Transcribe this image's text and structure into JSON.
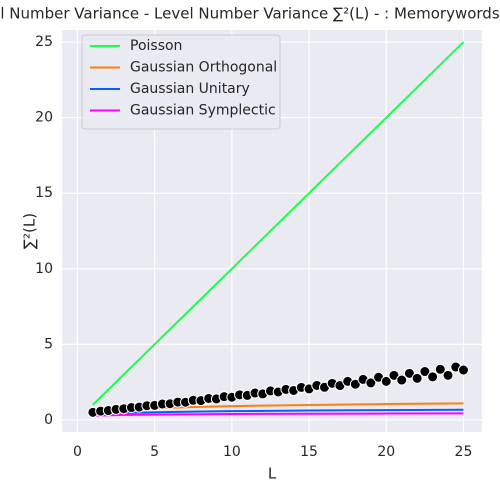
{
  "chart_data": {
    "type": "line",
    "title": "l Number Variance - Level Number Variance ∑²(L) - : Memorywords",
    "xlabel": "L",
    "ylabel": "∑²(L)",
    "xlim": [
      -1,
      26.2
    ],
    "ylim": [
      -0.8,
      25.8
    ],
    "xticks": [
      0,
      5,
      10,
      15,
      20,
      25
    ],
    "yticks": [
      0,
      5,
      10,
      15,
      20,
      25
    ],
    "grid": true,
    "legend": "upper left",
    "x": [
      1,
      2,
      3,
      5,
      7,
      10,
      15,
      20,
      25
    ],
    "series": [
      {
        "name": "Poisson",
        "color": "#1aff4a",
        "values": [
          1,
          2,
          3,
          5,
          7,
          10,
          15,
          20,
          25
        ]
      },
      {
        "name": "Gaussian Orthogonal",
        "color": "#ff7f0e",
        "values": [
          0.44,
          0.58,
          0.66,
          0.77,
          0.84,
          0.91,
          0.99,
          1.05,
          1.09
        ]
      },
      {
        "name": "Gaussian Unitary",
        "color": "#0a5cff",
        "values": [
          0.35,
          0.42,
          0.46,
          0.51,
          0.54,
          0.58,
          0.62,
          0.65,
          0.67
        ]
      },
      {
        "name": "Gaussian Symplectic",
        "color": "#ff00ff",
        "values": [
          0.27,
          0.31,
          0.33,
          0.35,
          0.37,
          0.39,
          0.41,
          0.42,
          0.43
        ]
      }
    ],
    "scatter": {
      "color": "#000000",
      "x": [
        1,
        1.5,
        2,
        2.5,
        3,
        3.5,
        4,
        4.5,
        5,
        5.5,
        6,
        6.5,
        7,
        7.5,
        8,
        8.5,
        9,
        9.5,
        10,
        10.5,
        11,
        11.5,
        12,
        12.5,
        13,
        13.5,
        14,
        14.5,
        15,
        15.5,
        16,
        16.5,
        17,
        17.5,
        18,
        18.5,
        19,
        19.5,
        20,
        20.5,
        21,
        21.5,
        22,
        22.5,
        23,
        23.5,
        24,
        24.5,
        25
      ],
      "values": [
        0.5,
        0.58,
        0.62,
        0.7,
        0.74,
        0.82,
        0.85,
        0.94,
        0.96,
        1.05,
        1.07,
        1.18,
        1.17,
        1.3,
        1.28,
        1.42,
        1.39,
        1.54,
        1.5,
        1.66,
        1.62,
        1.78,
        1.72,
        1.92,
        1.85,
        2.02,
        1.95,
        2.15,
        2.05,
        2.28,
        2.16,
        2.42,
        2.27,
        2.55,
        2.36,
        2.68,
        2.45,
        2.82,
        2.55,
        2.95,
        2.64,
        3.08,
        2.75,
        3.2,
        2.85,
        3.35,
        2.95,
        3.5,
        3.3
      ]
    }
  }
}
